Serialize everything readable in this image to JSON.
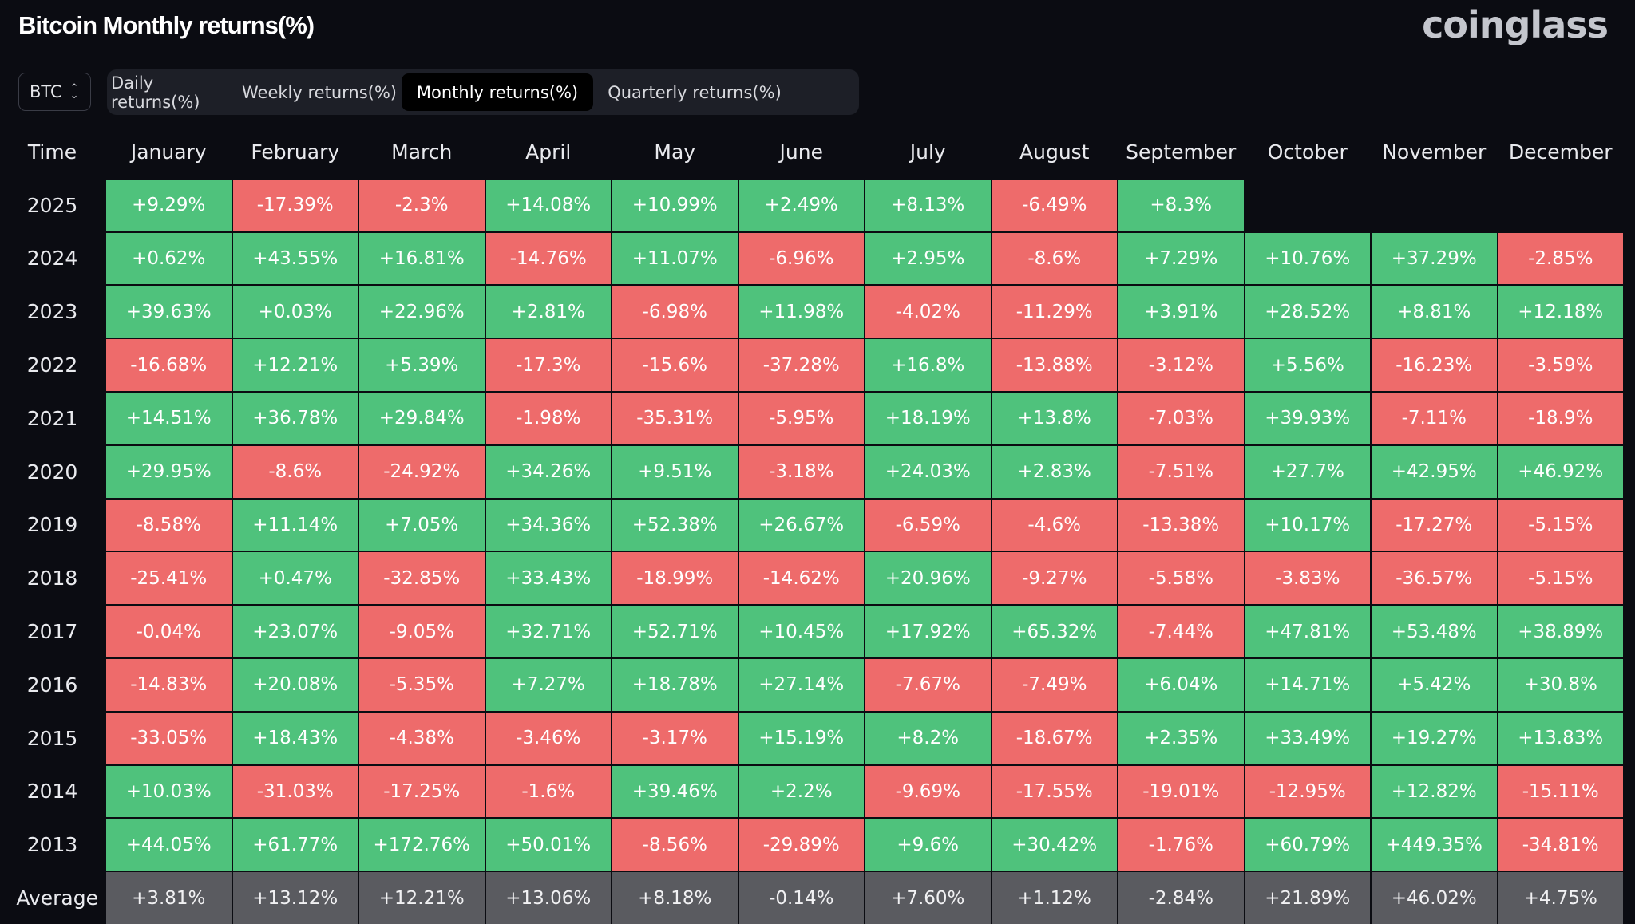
{
  "title": "Bitcoin Monthly returns(%)",
  "brand": "coinglass",
  "coin_select": {
    "value": "BTC"
  },
  "tabs": [
    {
      "label": "Daily returns(%)",
      "active": false
    },
    {
      "label": "Weekly returns(%)",
      "active": false
    },
    {
      "label": "Monthly returns(%)",
      "active": true
    },
    {
      "label": "Quarterly returns(%)",
      "active": false
    }
  ],
  "colors": {
    "positive": "#4fc27c",
    "negative": "#ee6b6b",
    "average": "#5a5b60",
    "background": "#0b0c12"
  },
  "table": {
    "columns": [
      "Time",
      "January",
      "February",
      "March",
      "April",
      "May",
      "June",
      "July",
      "August",
      "September",
      "October",
      "November",
      "December"
    ],
    "rows": [
      {
        "year": "2025",
        "values": [
          "+9.29%",
          "-17.39%",
          "-2.3%",
          "+14.08%",
          "+10.99%",
          "+2.49%",
          "+8.13%",
          "-6.49%",
          "+8.3%",
          "",
          "",
          ""
        ]
      },
      {
        "year": "2024",
        "values": [
          "+0.62%",
          "+43.55%",
          "+16.81%",
          "-14.76%",
          "+11.07%",
          "-6.96%",
          "+2.95%",
          "-8.6%",
          "+7.29%",
          "+10.76%",
          "+37.29%",
          "-2.85%"
        ]
      },
      {
        "year": "2023",
        "values": [
          "+39.63%",
          "+0.03%",
          "+22.96%",
          "+2.81%",
          "-6.98%",
          "+11.98%",
          "-4.02%",
          "-11.29%",
          "+3.91%",
          "+28.52%",
          "+8.81%",
          "+12.18%"
        ]
      },
      {
        "year": "2022",
        "values": [
          "-16.68%",
          "+12.21%",
          "+5.39%",
          "-17.3%",
          "-15.6%",
          "-37.28%",
          "+16.8%",
          "-13.88%",
          "-3.12%",
          "+5.56%",
          "-16.23%",
          "-3.59%"
        ]
      },
      {
        "year": "2021",
        "values": [
          "+14.51%",
          "+36.78%",
          "+29.84%",
          "-1.98%",
          "-35.31%",
          "-5.95%",
          "+18.19%",
          "+13.8%",
          "-7.03%",
          "+39.93%",
          "-7.11%",
          "-18.9%"
        ]
      },
      {
        "year": "2020",
        "values": [
          "+29.95%",
          "-8.6%",
          "-24.92%",
          "+34.26%",
          "+9.51%",
          "-3.18%",
          "+24.03%",
          "+2.83%",
          "-7.51%",
          "+27.7%",
          "+42.95%",
          "+46.92%"
        ]
      },
      {
        "year": "2019",
        "values": [
          "-8.58%",
          "+11.14%",
          "+7.05%",
          "+34.36%",
          "+52.38%",
          "+26.67%",
          "-6.59%",
          "-4.6%",
          "-13.38%",
          "+10.17%",
          "-17.27%",
          "-5.15%"
        ]
      },
      {
        "year": "2018",
        "values": [
          "-25.41%",
          "+0.47%",
          "-32.85%",
          "+33.43%",
          "-18.99%",
          "-14.62%",
          "+20.96%",
          "-9.27%",
          "-5.58%",
          "-3.83%",
          "-36.57%",
          "-5.15%"
        ]
      },
      {
        "year": "2017",
        "values": [
          "-0.04%",
          "+23.07%",
          "-9.05%",
          "+32.71%",
          "+52.71%",
          "+10.45%",
          "+17.92%",
          "+65.32%",
          "-7.44%",
          "+47.81%",
          "+53.48%",
          "+38.89%"
        ]
      },
      {
        "year": "2016",
        "values": [
          "-14.83%",
          "+20.08%",
          "-5.35%",
          "+7.27%",
          "+18.78%",
          "+27.14%",
          "-7.67%",
          "-7.49%",
          "+6.04%",
          "+14.71%",
          "+5.42%",
          "+30.8%"
        ]
      },
      {
        "year": "2015",
        "values": [
          "-33.05%",
          "+18.43%",
          "-4.38%",
          "-3.46%",
          "-3.17%",
          "+15.19%",
          "+8.2%",
          "-18.67%",
          "+2.35%",
          "+33.49%",
          "+19.27%",
          "+13.83%"
        ]
      },
      {
        "year": "2014",
        "values": [
          "+10.03%",
          "-31.03%",
          "-17.25%",
          "-1.6%",
          "+39.46%",
          "+2.2%",
          "-9.69%",
          "-17.55%",
          "-19.01%",
          "-12.95%",
          "+12.82%",
          "-15.11%"
        ]
      },
      {
        "year": "2013",
        "values": [
          "+44.05%",
          "+61.77%",
          "+172.76%",
          "+50.01%",
          "-8.56%",
          "-29.89%",
          "+9.6%",
          "+30.42%",
          "-1.76%",
          "+60.79%",
          "+449.35%",
          "-34.81%"
        ]
      }
    ],
    "average": {
      "label": "Average",
      "values": [
        "+3.81%",
        "+13.12%",
        "+12.21%",
        "+13.06%",
        "+8.18%",
        "-0.14%",
        "+7.60%",
        "+1.12%",
        "-2.84%",
        "+21.89%",
        "+46.02%",
        "+4.75%"
      ]
    }
  }
}
